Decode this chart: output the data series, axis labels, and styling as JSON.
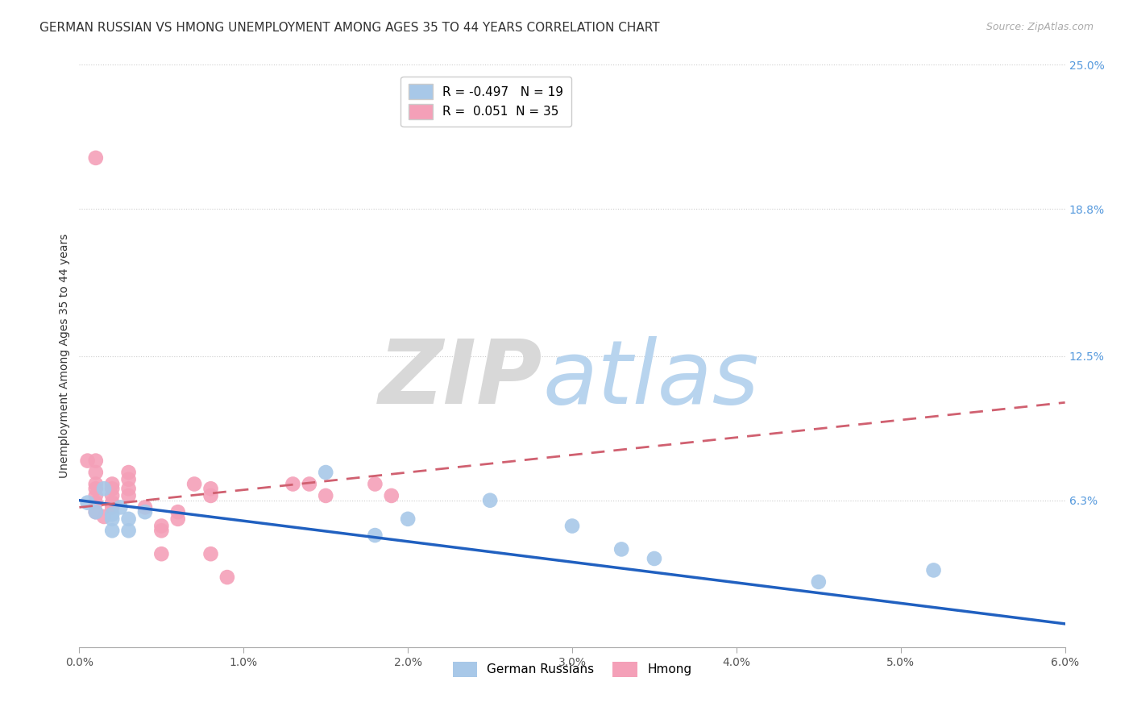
{
  "title": "GERMAN RUSSIAN VS HMONG UNEMPLOYMENT AMONG AGES 35 TO 44 YEARS CORRELATION CHART",
  "source": "Source: ZipAtlas.com",
  "ylabel": "Unemployment Among Ages 35 to 44 years",
  "xlim": [
    0.0,
    0.06
  ],
  "ylim": [
    0.0,
    0.25
  ],
  "xtick_labels": [
    "0.0%",
    "1.0%",
    "2.0%",
    "3.0%",
    "4.0%",
    "5.0%",
    "6.0%"
  ],
  "xtick_vals": [
    0.0,
    0.01,
    0.02,
    0.03,
    0.04,
    0.05,
    0.06
  ],
  "ytick_labels_right": [
    "6.3%",
    "12.5%",
    "18.8%",
    "25.0%"
  ],
  "ytick_vals_right": [
    0.063,
    0.125,
    0.188,
    0.25
  ],
  "legend_line1": "R = -0.497   N = 19",
  "legend_line2": "R =  0.051  N = 35",
  "bottom_legend_1": "German Russians",
  "bottom_legend_2": "Hmong",
  "blue_color": "#a8c8e8",
  "pink_color": "#f4a0b8",
  "blue_line_color": "#2060c0",
  "pink_line_color": "#d06070",
  "background_color": "#ffffff",
  "blue_trend_x": [
    0.0,
    0.06
  ],
  "blue_trend_y": [
    0.063,
    0.01
  ],
  "pink_trend_x": [
    0.0,
    0.06
  ],
  "pink_trend_y": [
    0.06,
    0.105
  ],
  "blue_x": [
    0.0005,
    0.001,
    0.0015,
    0.002,
    0.002,
    0.002,
    0.0025,
    0.003,
    0.003,
    0.004,
    0.015,
    0.018,
    0.02,
    0.025,
    0.03,
    0.033,
    0.035,
    0.045,
    0.052
  ],
  "blue_y": [
    0.062,
    0.058,
    0.068,
    0.057,
    0.055,
    0.05,
    0.06,
    0.055,
    0.05,
    0.058,
    0.075,
    0.048,
    0.055,
    0.063,
    0.052,
    0.042,
    0.038,
    0.028,
    0.033
  ],
  "pink_x": [
    0.0005,
    0.001,
    0.001,
    0.001,
    0.001,
    0.001,
    0.001,
    0.001,
    0.001,
    0.0015,
    0.002,
    0.002,
    0.002,
    0.002,
    0.002,
    0.003,
    0.003,
    0.003,
    0.003,
    0.004,
    0.005,
    0.005,
    0.005,
    0.006,
    0.006,
    0.007,
    0.008,
    0.008,
    0.008,
    0.009,
    0.013,
    0.014,
    0.015,
    0.018,
    0.019
  ],
  "pink_y": [
    0.08,
    0.21,
    0.08,
    0.075,
    0.07,
    0.068,
    0.065,
    0.062,
    0.058,
    0.056,
    0.07,
    0.068,
    0.065,
    0.062,
    0.06,
    0.075,
    0.072,
    0.068,
    0.065,
    0.06,
    0.052,
    0.05,
    0.04,
    0.058,
    0.055,
    0.07,
    0.068,
    0.065,
    0.04,
    0.03,
    0.07,
    0.07,
    0.065,
    0.07,
    0.065
  ],
  "title_fontsize": 11,
  "axis_label_fontsize": 10,
  "tick_fontsize": 10,
  "legend_fontsize": 11,
  "scatter_size": 180
}
